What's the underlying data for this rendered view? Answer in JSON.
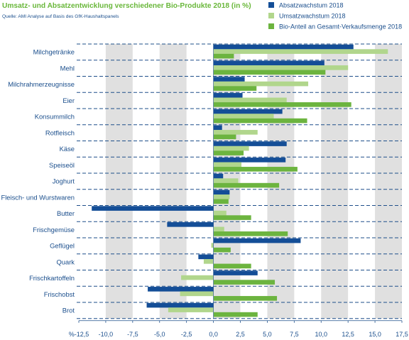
{
  "header": {
    "title": "Umsatz- und Absatzentwicklung verschiedener Bio-Produkte 2018 (in %)",
    "source": "Quelle: AMI Analyse auf Basis des GfK-Haushaltspanels"
  },
  "colors": {
    "absatz": "#144e97",
    "umsatz": "#b1d68c",
    "anteil": "#6cb43f",
    "band": "#e0e0e0",
    "text": "#1a4e8c",
    "title": "#69b73a"
  },
  "chart_data": {
    "type": "bar",
    "orientation": "horizontal",
    "title": "Umsatz- und Absatzentwicklung verschiedener Bio-Produkte 2018 (in %)",
    "categories": [
      "Milchgetränke",
      "Mehl",
      "Milchrahmerzeugnisse",
      "Eier",
      "Konsummilch",
      "Rotfleisch",
      "Käse",
      "Speiseöl",
      "Joghurt",
      "Fleisch- und Wurstwaren",
      "Butter",
      "Frischgemüse",
      "Geflügel",
      "Quark",
      "Frischkartoffeln",
      "Frischobst",
      "Brot"
    ],
    "series": [
      {
        "name": "Absatzwachstum 2018",
        "values": [
          13.0,
          10.3,
          2.9,
          2.7,
          6.4,
          0.8,
          6.8,
          6.7,
          0.9,
          1.5,
          -11.3,
          -4.3,
          8.1,
          -1.4,
          4.1,
          -6.1,
          -6.2
        ]
      },
      {
        "name": "Umsatzwachstum 2018",
        "values": [
          16.2,
          12.5,
          8.8,
          6.8,
          5.6,
          4.1,
          3.3,
          2.6,
          2.3,
          1.5,
          1.2,
          1.0,
          -0.2,
          -0.9,
          -3.0,
          -3.1,
          -4.2
        ]
      },
      {
        "name": "Bio-Anteil an Gesamt-Verkaufsmenge 2018",
        "values": [
          1.9,
          10.4,
          4.0,
          12.8,
          8.7,
          2.1,
          2.8,
          7.8,
          6.1,
          1.4,
          3.5,
          6.9,
          1.6,
          3.5,
          5.7,
          5.9,
          4.1
        ]
      }
    ],
    "xlim": [
      -12.5,
      17.5
    ],
    "xticks": [
      -12.5,
      -10,
      -7.5,
      -5,
      -2.5,
      0,
      2.5,
      5,
      7.5,
      10,
      12.5,
      15,
      17.5
    ],
    "xtick_labels": [
      "%-12,5",
      "-10,0",
      "-7,5",
      "-5,0",
      "-2,5",
      "0,0",
      "2,5",
      "5,0",
      "7,5",
      "10,0",
      "12,5",
      "15,0",
      "17,5"
    ],
    "shaded_bands": [
      [
        -10,
        -7.5
      ],
      [
        -5,
        -2.5
      ],
      [
        0,
        2.5
      ],
      [
        5,
        7.5
      ],
      [
        10,
        12.5
      ],
      [
        15,
        17.5
      ]
    ],
    "legend_position": "top-right",
    "grid": "dashed separators between categories"
  }
}
